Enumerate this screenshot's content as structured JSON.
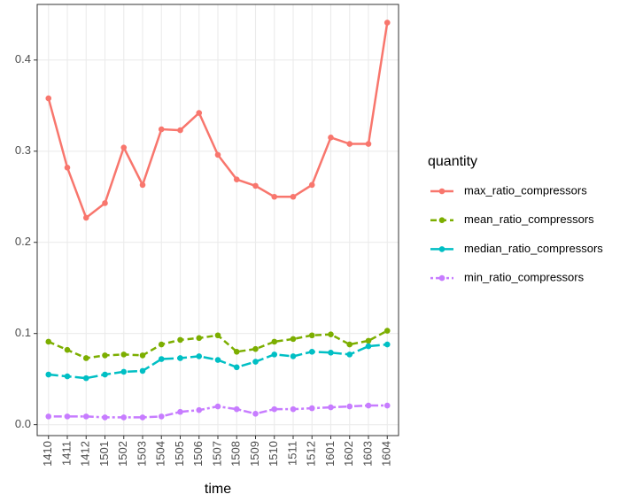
{
  "chart_data": {
    "type": "line",
    "x_label": "time",
    "legend_title": "quantity",
    "legend": "right",
    "grid": true,
    "categories": [
      "1410",
      "1411",
      "1412",
      "1501",
      "1502",
      "1503",
      "1504",
      "1505",
      "1506",
      "1507",
      "1508",
      "1509",
      "1510",
      "1511",
      "1512",
      "1601",
      "1602",
      "1603",
      "1604"
    ],
    "series": [
      {
        "name": "max_ratio_compressors",
        "color": "#F8766D",
        "dash": "solid",
        "values": [
          0.358,
          0.282,
          0.227,
          0.243,
          0.304,
          0.263,
          0.324,
          0.323,
          0.342,
          0.296,
          0.269,
          0.262,
          0.25,
          0.25,
          0.263,
          0.315,
          0.308,
          0.308,
          0.441
        ]
      },
      {
        "name": "mean_ratio_compressors",
        "color": "#7CAE00",
        "dash": "dashed",
        "values": [
          0.091,
          0.082,
          0.073,
          0.076,
          0.077,
          0.076,
          0.088,
          0.093,
          0.095,
          0.098,
          0.08,
          0.083,
          0.091,
          0.094,
          0.098,
          0.099,
          0.088,
          0.092,
          0.103
        ]
      },
      {
        "name": "median_ratio_compressors",
        "color": "#00BFC4",
        "dash": "longdash",
        "values": [
          0.055,
          0.053,
          0.051,
          0.055,
          0.058,
          0.059,
          0.072,
          0.073,
          0.075,
          0.071,
          0.063,
          0.069,
          0.077,
          0.075,
          0.08,
          0.079,
          0.077,
          0.086,
          0.088
        ]
      },
      {
        "name": "min_ratio_compressors",
        "color": "#C77CFF",
        "dash": "twodash",
        "values": [
          0.009,
          0.009,
          0.009,
          0.008,
          0.008,
          0.008,
          0.009,
          0.014,
          0.016,
          0.02,
          0.017,
          0.012,
          0.017,
          0.017,
          0.018,
          0.019,
          0.02,
          0.021,
          0.021
        ]
      }
    ],
    "ylim": [
      -0.012,
      0.461
    ],
    "yticks": [
      {
        "value": 0,
        "label": "0.0"
      },
      0.1,
      0.2,
      0.3,
      0.4
    ]
  }
}
